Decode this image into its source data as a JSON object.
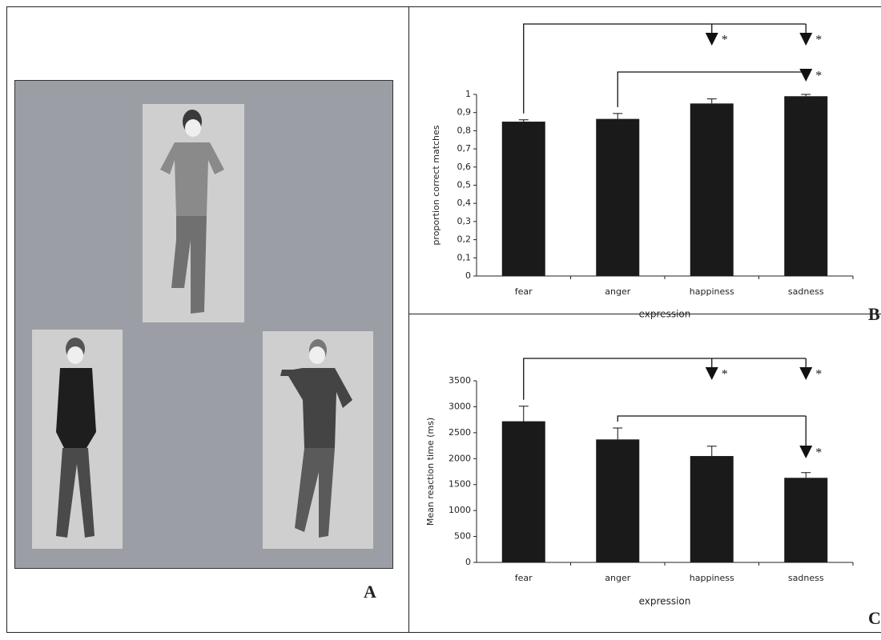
{
  "photo_panel": {
    "label": "A"
  },
  "chart_data": [
    {
      "type": "bar",
      "panel": "B",
      "ylabel": "proportion correct matches",
      "xlabel": "expression",
      "categories": [
        "fear",
        "anger",
        "happiness",
        "sadness"
      ],
      "values": [
        0.85,
        0.865,
        0.95,
        0.99
      ],
      "errors": [
        0.01,
        0.03,
        0.025,
        0.01
      ],
      "color": "#1a1a1a",
      "ylim": [
        0,
        1
      ],
      "yticks": [
        0,
        {
          "value": 0.1,
          "label": "0,1"
        },
        {
          "value": 0.2,
          "label": "0,2"
        },
        {
          "value": 0.3,
          "label": "0,3"
        },
        {
          "value": 0.4,
          "label": "0,4"
        },
        {
          "value": 0.5,
          "label": "0,5"
        },
        {
          "value": 0.6,
          "label": "0,6"
        },
        {
          "value": 0.7,
          "label": "0,7"
        },
        {
          "value": 0.8,
          "label": "0,8"
        },
        {
          "value": 0.9,
          "label": "0,9"
        },
        1
      ],
      "comparisons": [
        {
          "from": "fear",
          "to": "happiness",
          "label": "*"
        },
        {
          "from": "fear",
          "to": "sadness",
          "label": "*"
        },
        {
          "from": "anger",
          "to": "sadness",
          "label": "*"
        }
      ]
    },
    {
      "type": "bar",
      "panel": "C",
      "ylabel": "Mean reaction time (ms)",
      "xlabel": "expression",
      "categories": [
        "fear",
        "anger",
        "happiness",
        "sadness"
      ],
      "values": [
        2720,
        2370,
        2050,
        1630
      ],
      "errors": [
        290,
        220,
        190,
        100
      ],
      "color": "#1a1a1a",
      "ylim": [
        0,
        3500
      ],
      "yticks": [
        0,
        500,
        1000,
        1500,
        2000,
        2500,
        3000,
        3500
      ],
      "comparisons": [
        {
          "from": "fear",
          "to": "happiness",
          "label": "*"
        },
        {
          "from": "fear",
          "to": "sadness",
          "label": "*"
        },
        {
          "from": "anger",
          "to": "sadness",
          "label": "*"
        }
      ]
    }
  ]
}
